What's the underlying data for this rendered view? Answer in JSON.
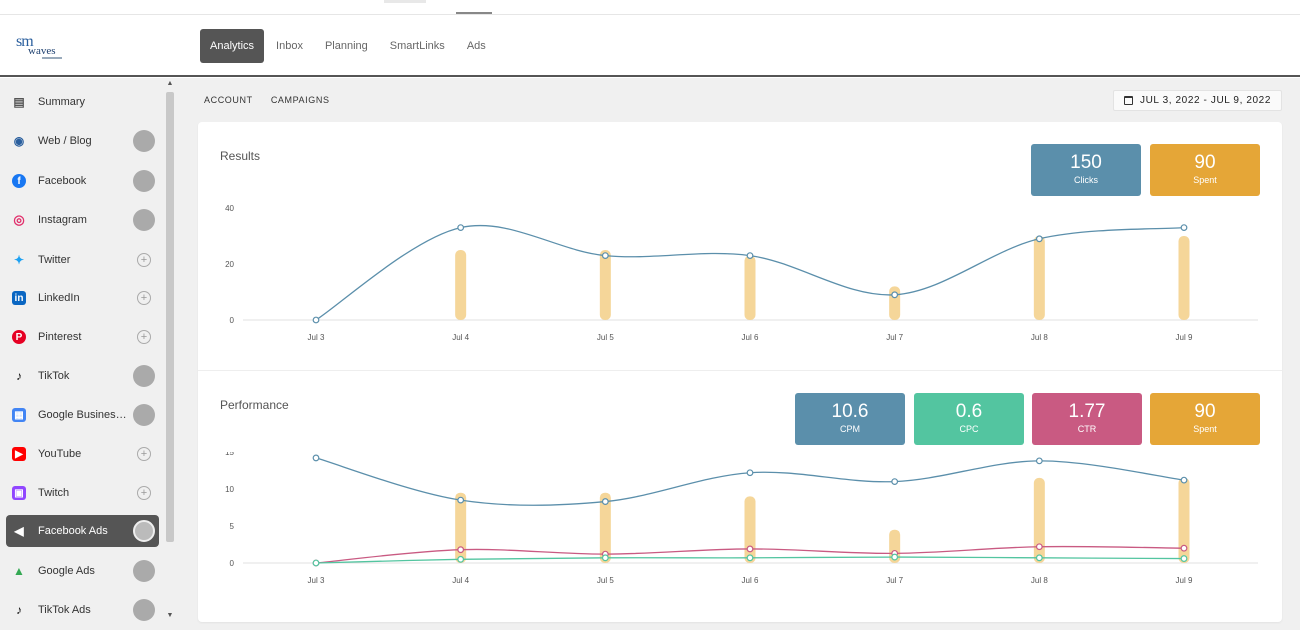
{
  "header": {
    "logo_text_1": "sm",
    "logo_text_2": "waves",
    "tabs": [
      {
        "label": "Analytics",
        "active": true
      },
      {
        "label": "Inbox"
      },
      {
        "label": "Planning"
      },
      {
        "label": "SmartLinks"
      },
      {
        "label": "Ads"
      }
    ]
  },
  "sidebar": {
    "items": [
      {
        "label": "Summary",
        "icon": "clipboard-icon",
        "color": "#555555",
        "status": "none"
      },
      {
        "label": "Web / Blog",
        "icon": "rss-icon",
        "color": "#2a5f9e",
        "status": "circle"
      },
      {
        "label": "Facebook",
        "icon": "facebook-icon",
        "color": "#1877f2",
        "status": "circle"
      },
      {
        "label": "Instagram",
        "icon": "instagram-icon",
        "color": "#e1306c",
        "status": "circle"
      },
      {
        "label": "Twitter",
        "icon": "twitter-icon",
        "color": "#1da1f2",
        "status": "add"
      },
      {
        "label": "LinkedIn",
        "icon": "linkedin-icon",
        "color": "#0a66c2",
        "status": "add"
      },
      {
        "label": "Pinterest",
        "icon": "pinterest-icon",
        "color": "#e60023",
        "status": "add"
      },
      {
        "label": "TikTok",
        "icon": "tiktok-icon",
        "color": "#111111",
        "status": "circle"
      },
      {
        "label": "Google Business Profile",
        "icon": "google-business-icon",
        "color": "#4285f4",
        "status": "circle"
      },
      {
        "label": "YouTube",
        "icon": "youtube-icon",
        "color": "#ff0000",
        "status": "add"
      },
      {
        "label": "Twitch",
        "icon": "twitch-icon",
        "color": "#9146ff",
        "status": "add"
      },
      {
        "label": "Facebook Ads",
        "icon": "megaphone-icon",
        "color": "#ffffff",
        "status": "circle",
        "active": true
      },
      {
        "label": "Google Ads",
        "icon": "google-ads-icon",
        "color": "#34a853",
        "status": "circle"
      },
      {
        "label": "TikTok Ads",
        "icon": "tiktok-icon",
        "color": "#111111",
        "status": "circle"
      }
    ]
  },
  "subnav": {
    "account": "ACCOUNT",
    "campaigns": "CAMPAIGNS"
  },
  "daterange": "JUL 3, 2022 - JUL 9, 2022",
  "results": {
    "title": "Results",
    "kpis": [
      {
        "value": "150",
        "label": "Clicks",
        "color": "#5b8fab"
      },
      {
        "value": "90",
        "label": "Spent",
        "color": "#e5a637"
      }
    ]
  },
  "performance": {
    "title": "Performance",
    "kpis": [
      {
        "value": "10.6",
        "label": "CPM",
        "color": "#5b8fab"
      },
      {
        "value": "0.6",
        "label": "CPC",
        "color": "#53c5a0"
      },
      {
        "value": "1.77",
        "label": "CTR",
        "color": "#c95a82"
      },
      {
        "value": "90",
        "label": "Spent",
        "color": "#e5a637"
      }
    ]
  },
  "chart_data": [
    {
      "type": "line",
      "title": "Results",
      "categories": [
        "Jul 3",
        "Jul 4",
        "Jul 5",
        "Jul 6",
        "Jul 7",
        "Jul 8",
        "Jul 9"
      ],
      "ylim": [
        0,
        40
      ],
      "yticks": [
        0,
        20,
        40
      ],
      "bars": [
        0,
        25,
        25,
        23,
        12,
        30,
        30
      ],
      "bar_color": "#f5d699",
      "series": [
        {
          "name": "Clicks",
          "values": [
            0,
            33,
            23,
            23,
            9,
            29,
            33
          ],
          "color": "#5b8fab"
        }
      ]
    },
    {
      "type": "line",
      "title": "Performance",
      "categories": [
        "Jul 3",
        "Jul 4",
        "Jul 5",
        "Jul 6",
        "Jul 7",
        "Jul 8",
        "Jul 9"
      ],
      "ylim": [
        0,
        15
      ],
      "yticks": [
        0,
        5,
        10,
        15
      ],
      "bars": [
        0,
        9.5,
        9.5,
        9,
        4.5,
        11.5,
        11.5
      ],
      "bar_color": "#f5d699",
      "series": [
        {
          "name": "CPM",
          "values": [
            14.2,
            8.5,
            8.3,
            12.2,
            11,
            13.8,
            11.2
          ],
          "color": "#5b8fab"
        },
        {
          "name": "CTR",
          "values": [
            0,
            1.8,
            1.2,
            1.9,
            1.3,
            2.2,
            2
          ],
          "color": "#c95a82"
        },
        {
          "name": "CPC",
          "values": [
            0,
            0.5,
            0.7,
            0.7,
            0.8,
            0.7,
            0.6
          ],
          "color": "#53c5a0"
        }
      ]
    }
  ]
}
